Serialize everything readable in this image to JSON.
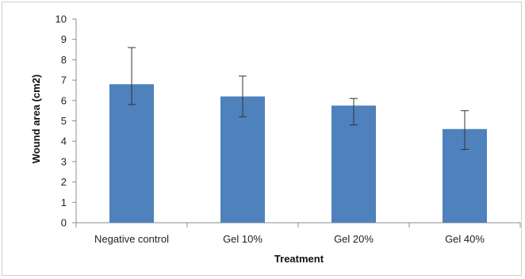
{
  "chart_data": {
    "type": "bar",
    "title": "",
    "xlabel": "Treatment",
    "ylabel": "Wound area (cm2)",
    "categories": [
      "Negative control",
      "Gel 10%",
      "Gel 20%",
      "Gel 40%"
    ],
    "values": [
      6.8,
      6.2,
      5.75,
      4.6
    ],
    "error_low": [
      5.8,
      5.2,
      4.8,
      3.6
    ],
    "error_high": [
      8.6,
      7.2,
      6.1,
      5.5
    ],
    "ylim": [
      0,
      10
    ],
    "yticks": [
      "0",
      "1",
      "2",
      "3",
      "4",
      "5",
      "6",
      "7",
      "8",
      "9",
      "10"
    ],
    "grid": false,
    "legend": "none",
    "bar_color": "#4f81bd"
  }
}
